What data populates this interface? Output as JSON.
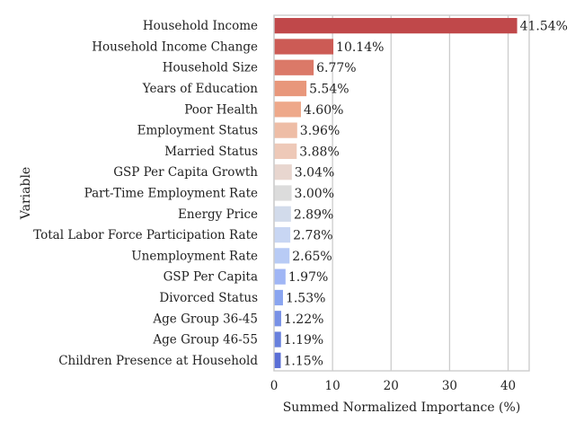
{
  "chart_data": {
    "type": "bar",
    "orientation": "horizontal",
    "xlabel": "Summed Normalized Importance (%)",
    "ylabel": "Variable",
    "xlim": [
      0,
      43.6
    ],
    "xticks": [
      0,
      10,
      20,
      30,
      40
    ],
    "grid": "vertical",
    "categories": [
      "Household Income",
      "Household Income Change",
      "Household Size",
      "Years of Education",
      "Poor Health",
      "Employment Status",
      "Married Status",
      "GSP Per Capita Growth",
      "Part-Time Employment Rate",
      "Energy Price",
      "Total Labor Force Participation Rate",
      "Unemployment Rate",
      "GSP Per Capita",
      "Divorced Status",
      "Age Group 36-45",
      "Age Group 46-55",
      "Children Presence at Household"
    ],
    "values": [
      41.54,
      10.14,
      6.77,
      5.54,
      4.6,
      3.96,
      3.88,
      3.04,
      3.0,
      2.89,
      2.78,
      2.65,
      1.97,
      1.53,
      1.22,
      1.19,
      1.15
    ],
    "value_labels": [
      "41.54%",
      "10.14%",
      "6.77%",
      "5.54%",
      "4.60%",
      "3.96%",
      "3.88%",
      "3.04%",
      "3.00%",
      "2.89%",
      "2.78%",
      "2.65%",
      "1.97%",
      "1.53%",
      "1.22%",
      "1.19%",
      "1.15%"
    ],
    "colors": [
      "#c0484a",
      "#cc5b55",
      "#db7968",
      "#e8977b",
      "#eea88a",
      "#eebda6",
      "#eec9b8",
      "#e8d6cf",
      "#dcdcdc",
      "#d2dbeb",
      "#c8d6f3",
      "#b8cbf5",
      "#a0b6f5",
      "#8aa5f0",
      "#7891e6",
      "#6880dd",
      "#5b6fd6"
    ]
  }
}
